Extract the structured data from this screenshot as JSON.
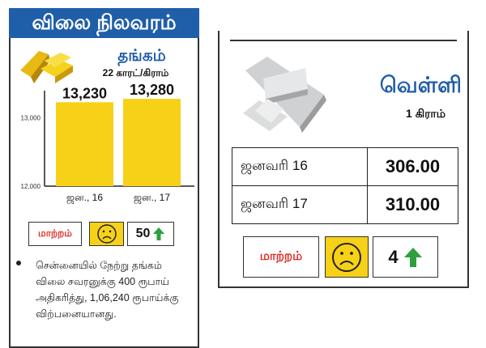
{
  "header": {
    "title": "விலை நிலவரம்"
  },
  "gold": {
    "title": "தங்கம்",
    "unit": "22 காரட்/கிராம்",
    "icon": "gold-bars-icon",
    "change": {
      "label": "மாற்றம்",
      "face": "sad-face-icon",
      "value": "50",
      "direction": "up"
    },
    "note": "சென்னையில் நேற்று தங்கம் விலை சவரனுக்கு 400 ரூபாய் அதிகரித்து, 1,06,240 ரூபாய்க்கு விற்பனையானது."
  },
  "chart_data": {
    "type": "bar",
    "categories": [
      "ஜன., 16",
      "ஜன., 17"
    ],
    "values": [
      13230,
      13280
    ],
    "value_labels": [
      "13,230",
      "13,280"
    ],
    "yticks": [
      "12,000",
      "13,000"
    ],
    "ylim": [
      12000,
      13400
    ],
    "color": "#f7d117"
  },
  "silver": {
    "title": "வெள்ளி",
    "unit": "1 கிராம்",
    "icon": "silver-bars-icon",
    "rows": [
      {
        "date": "ஜனவரி 16",
        "price": "306.00"
      },
      {
        "date": "ஜனவரி 17",
        "price": "310.00"
      }
    ],
    "change": {
      "label": "மாற்றம்",
      "face": "sad-face-icon",
      "value": "4",
      "direction": "up"
    }
  },
  "colors": {
    "header": "#1f5ea8",
    "gold": "#f7d117",
    "change_label": "#e0261f",
    "arrow": "#2e9e3e"
  }
}
